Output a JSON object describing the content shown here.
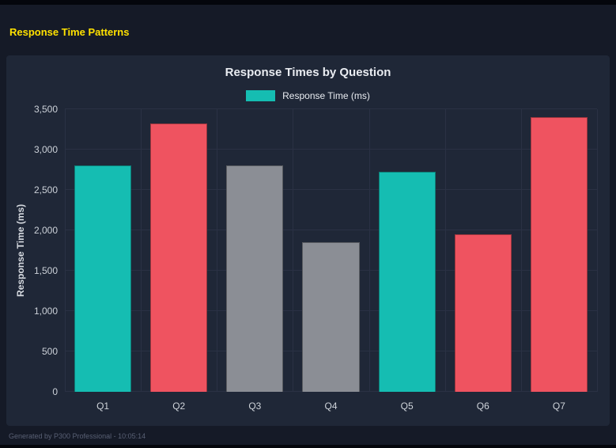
{
  "page": {
    "title": "Response Time Patterns",
    "footer": "Generated by P300 Professional - 10:05:14"
  },
  "chart_data": {
    "type": "bar",
    "title": "Response Times by Question",
    "legend": [
      {
        "label": "Response Time (ms)",
        "color": "#15bdb2"
      }
    ],
    "categories": [
      "Q1",
      "Q2",
      "Q3",
      "Q4",
      "Q5",
      "Q6",
      "Q7"
    ],
    "values": [
      2800,
      3320,
      2800,
      1850,
      2730,
      1950,
      3400
    ],
    "bar_colors": [
      "#15bdb2",
      "#ef5360",
      "#8b8e95",
      "#8b8e95",
      "#15bdb2",
      "#ef5360",
      "#ef5360"
    ],
    "xlabel": "",
    "ylabel": "Response Time (ms)",
    "ylim": [
      0,
      3500
    ],
    "ytick_step": 500,
    "yticks": [
      "0",
      "500",
      "1,000",
      "1,500",
      "2,000",
      "2,500",
      "3,000",
      "3,500"
    ],
    "grid": "on",
    "legend_position": "top-center",
    "colors": {
      "panel_background": "#1f2737",
      "page_background": "#151a27",
      "gridline": "#2a3144",
      "title_accent": "#ffe100"
    }
  }
}
